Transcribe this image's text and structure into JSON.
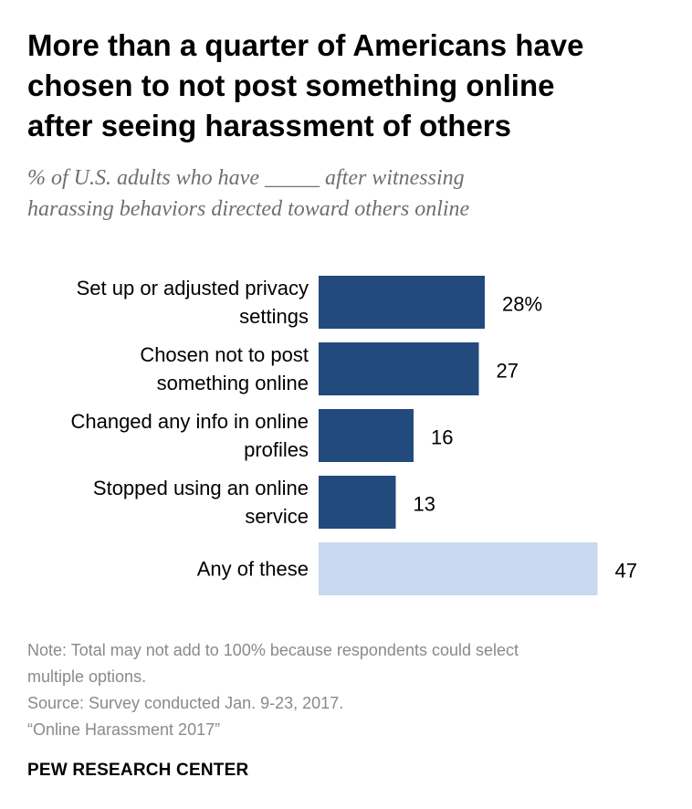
{
  "header": {
    "title": "More than a quarter of Americans have\nchosen to not post something online\nafter seeing harassment of others",
    "subtitle": "% of U.S. adults who have _____ after witnessing\nharassing behaviors directed toward others online"
  },
  "chart_data": {
    "type": "bar",
    "orientation": "horizontal",
    "categories": [
      [
        "Set up or adjusted privacy",
        "settings"
      ],
      [
        "Chosen not to post",
        "something online"
      ],
      [
        "Changed any info in online",
        "profiles"
      ],
      [
        "Stopped using an online",
        "service"
      ],
      [
        "Any of these"
      ]
    ],
    "values": [
      28,
      27,
      16,
      13,
      47
    ],
    "value_labels": [
      "28%",
      "27",
      "16",
      "13",
      "47"
    ],
    "colors": [
      "#234a7c",
      "#234a7c",
      "#234a7c",
      "#234a7c",
      "#c8d9f0"
    ],
    "xlim": [
      0,
      100
    ],
    "grid": false,
    "legend": "none"
  },
  "footer": {
    "note": "Note: Total may not add to 100% because respondents could select\nmultiple options.",
    "source": "Source: Survey conducted Jan. 9-23, 2017.",
    "report": "“Online Harassment 2017”",
    "brand": "PEW RESEARCH CENTER"
  }
}
